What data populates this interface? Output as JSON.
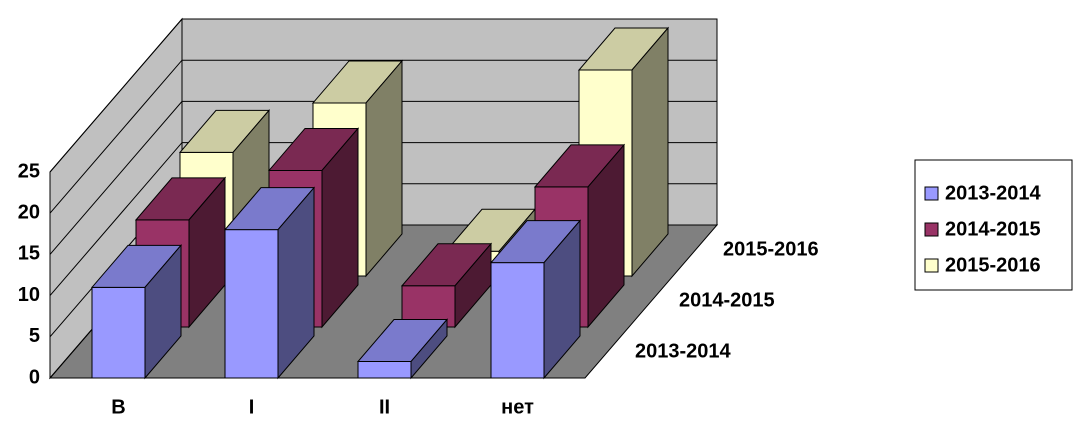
{
  "chart_data": {
    "type": "bar3d",
    "categories": [
      "В",
      "I",
      "II",
      "нет"
    ],
    "series": [
      {
        "name": "2013-2014",
        "color": "#9999ff",
        "values": [
          11,
          18,
          2,
          14
        ]
      },
      {
        "name": "2014-2015",
        "color": "#993366",
        "values": [
          13,
          19,
          5,
          17
        ]
      },
      {
        "name": "2015-2016",
        "color": "#ffffcc",
        "values": [
          15,
          21,
          3,
          25
        ]
      }
    ],
    "ylim": [
      0,
      25
    ],
    "yticks": [
      0,
      5,
      10,
      15,
      20,
      25
    ],
    "grid": true,
    "legend": "right"
  }
}
